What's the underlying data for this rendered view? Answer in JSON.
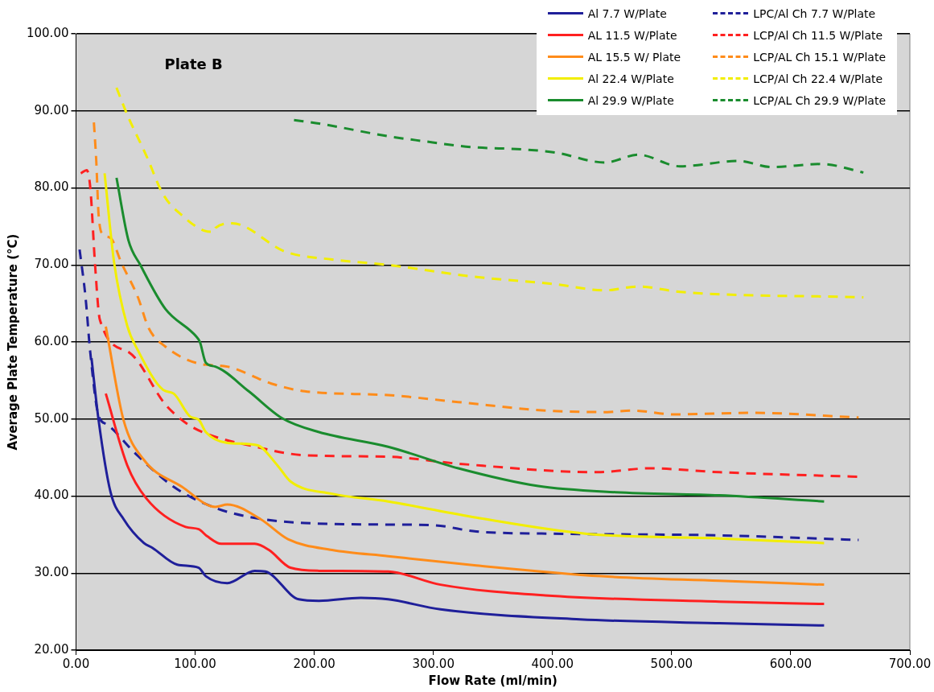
{
  "chart_data": {
    "type": "line",
    "xlabel": "Flow Rate (ml/min)",
    "ylabel": "Average Plate Temperature (°C)",
    "annotations": [
      "Plate B"
    ],
    "xlim": [
      0,
      700
    ],
    "xticks": [
      {
        "value": 0,
        "label": "0.00"
      },
      {
        "value": 100,
        "label": "100.00"
      },
      {
        "value": 200,
        "label": "200.00"
      },
      {
        "value": 300,
        "label": "300.00"
      },
      {
        "value": 400,
        "label": "400.00"
      },
      {
        "value": 500,
        "label": "500.00"
      },
      {
        "value": 600,
        "label": "600.00"
      },
      {
        "value": 700,
        "label": "700.00"
      }
    ],
    "ylim": [
      20,
      100
    ],
    "yticks": [
      {
        "value": 20,
        "label": "20.00"
      },
      {
        "value": 30,
        "label": "30.00"
      },
      {
        "value": 40,
        "label": "40.00"
      },
      {
        "value": 50,
        "label": "50.00"
      },
      {
        "value": 60,
        "label": "60.00"
      },
      {
        "value": 70,
        "label": "70.00"
      },
      {
        "value": 80,
        "label": "80.00"
      },
      {
        "value": 90,
        "label": "90.00"
      },
      {
        "value": 100,
        "label": "100.00"
      }
    ],
    "grid": "y",
    "legend": "top right",
    "marker": "none",
    "series": [
      {
        "name": "Al 7.7 W/Plate",
        "color": "#1f1f9a",
        "line_style": "solid",
        "x": [
          13,
          19,
          29,
          40,
          57,
          64,
          85,
          103,
          109,
          127,
          150,
          159,
          187,
          204,
          239,
          262,
          306,
          423,
          540,
          628
        ],
        "values": [
          57.9,
          49.8,
          40.5,
          37,
          33.9,
          33.3,
          31.1,
          30.7,
          29.6,
          28.7,
          30.3,
          30.2,
          26.6,
          26.4,
          26.8,
          26.6,
          25.3,
          24,
          23.5,
          23.2
        ]
      },
      {
        "name": "AL 11.5 W/Plate",
        "color": "#ff2020",
        "line_style": "solid",
        "x": [
          25,
          43,
          59,
          92,
          103,
          110,
          122,
          150,
          162,
          180,
          204,
          262,
          306,
          394,
          540,
          628
        ],
        "values": [
          53.3,
          44,
          39.7,
          36,
          35.7,
          34.8,
          33.8,
          33.8,
          33,
          30.7,
          30.3,
          30.2,
          28.5,
          27.1,
          26.3,
          26
        ]
      },
      {
        "name": "AL 15.5 W/ Plate",
        "color": "#ff8c1a",
        "line_style": "solid",
        "x": [
          25,
          40,
          57,
          89,
          117,
          127,
          155,
          178,
          215,
          262,
          336,
          441,
          540,
          628
        ],
        "values": [
          62,
          49.8,
          44.7,
          41.2,
          38.6,
          38.9,
          37,
          34.4,
          33,
          32.2,
          31,
          29.6,
          29,
          28.5
        ]
      },
      {
        "name": "Al 22.4 W/Plate",
        "color": "#f2ee00",
        "line_style": "solid",
        "x": [
          24,
          32,
          43,
          52,
          73,
          82,
          96,
          103,
          109,
          127,
          152,
          169,
          180,
          215,
          262,
          336,
          429,
          540,
          628
        ],
        "values": [
          81.9,
          70.3,
          62.1,
          58.9,
          53.8,
          53.3,
          50.3,
          49.9,
          48.3,
          46.9,
          46.6,
          44,
          41.9,
          40.3,
          39.3,
          37.2,
          35.1,
          34.5,
          33.9
        ]
      },
      {
        "name": "Al 29.9 W/Plate",
        "color": "#1a8c2e",
        "line_style": "solid",
        "x": [
          34,
          44,
          54,
          75,
          101,
          104,
          109,
          117,
          145,
          173,
          204,
          262,
          321,
          388,
          453,
          540,
          628
        ],
        "values": [
          81.3,
          73.2,
          70,
          64.3,
          60.7,
          60,
          57.3,
          56.8,
          53.6,
          50.1,
          48.3,
          46.4,
          43.6,
          41.3,
          40.5,
          40.1,
          39.3
        ]
      },
      {
        "name": "LPC/Al Ch 7.7 W/Plate",
        "color": "#1f1f9a",
        "line_style": "dashed",
        "x": [
          3,
          8,
          12,
          19,
          26,
          50,
          82,
          113,
          145,
          192,
          262,
          301,
          336,
          409,
          540,
          657
        ],
        "values": [
          72,
          65.8,
          58.6,
          50.4,
          49.3,
          45.5,
          41.2,
          38.7,
          37.3,
          36.5,
          36.3,
          36.2,
          35.4,
          35.1,
          34.9,
          34.3
        ]
      },
      {
        "name": "LCP/Al Ch 11.5 W/Plate",
        "color": "#ff2020",
        "line_style": "dashed",
        "x": [
          4,
          9,
          12,
          16,
          20,
          45,
          75,
          94,
          113,
          145,
          192,
          262,
          321,
          438,
          481,
          540,
          657
        ],
        "values": [
          81.9,
          82.3,
          80,
          70,
          62.9,
          58.6,
          51.9,
          49.3,
          47.9,
          46.6,
          45.3,
          45.1,
          44.2,
          43.1,
          43.6,
          43.1,
          42.5
        ]
      },
      {
        "name": "LCP/AL Ch 15.1 W/Plate",
        "color": "#ff8c1a",
        "line_style": "dashed",
        "x": [
          15,
          17,
          19,
          23,
          29,
          38,
          52,
          61,
          75,
          103,
          127,
          164,
          192,
          262,
          321,
          394,
          446,
          467,
          502,
          569,
          657
        ],
        "values": [
          88.5,
          83.5,
          76.4,
          73.9,
          73.5,
          70.3,
          65.8,
          61.8,
          59.4,
          57.2,
          56.8,
          54.6,
          53.6,
          53.1,
          52.2,
          51.1,
          50.9,
          51.1,
          50.6,
          50.8,
          50.2
        ]
      },
      {
        "name": "LCP/Al Ch 22.4 W/Plate",
        "color": "#f2ee00",
        "line_style": "dashed",
        "x": [
          34,
          43,
          59,
          73,
          87,
          113,
          116,
          117,
          131,
          176,
          215,
          262,
          332,
          402,
          444,
          472,
          507,
          661
        ],
        "values": [
          93,
          89.5,
          84.2,
          79.2,
          76.7,
          74.3,
          74.3,
          74.8,
          75.4,
          71.7,
          70.7,
          70,
          68.5,
          67.5,
          66.7,
          67.2,
          66.5,
          65.8
        ]
      },
      {
        "name": "LCP/AL Ch 29.9 W/Plate",
        "color": "#1a8c2e",
        "line_style": "dashed",
        "x": [
          183,
          206,
          262,
          290,
          332,
          374,
          402,
          444,
          472,
          507,
          556,
          584,
          626,
          661
        ],
        "values": [
          88.8,
          88.3,
          86.7,
          86.1,
          85.3,
          85,
          84.6,
          83.3,
          84.3,
          82.8,
          83.5,
          82.7,
          83.1,
          82
        ]
      }
    ]
  }
}
